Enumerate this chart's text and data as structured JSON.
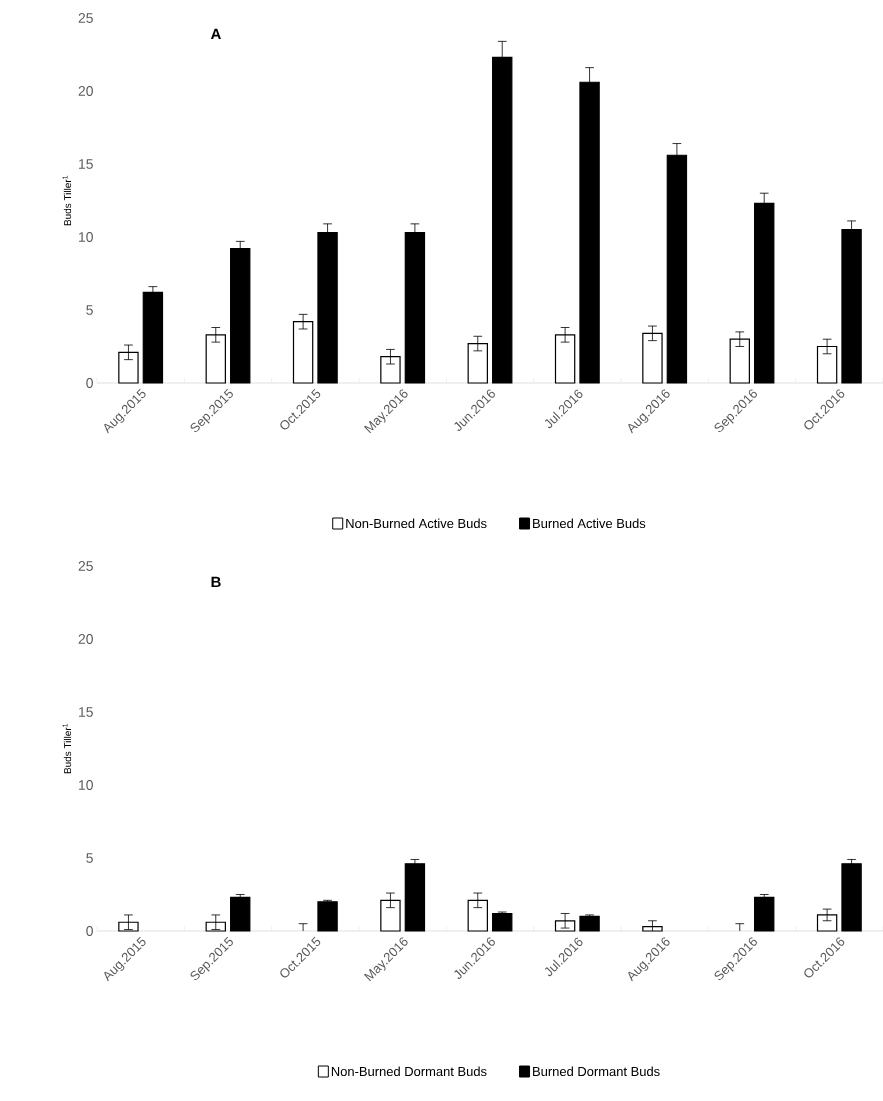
{
  "chart_data": [
    {
      "type": "bar",
      "title": "A",
      "ylabel": "Buds Tiller$^{1}$",
      "categories": [
        "Aug.2015",
        "Sep.2015",
        "Oct.2015",
        "May.2016",
        "Jun.2016",
        "Jul.2016",
        "Aug.2016",
        "Sep.2016",
        "Oct.2016"
      ],
      "ylim": [
        0,
        25
      ],
      "yticks": [
        0,
        5,
        10,
        15,
        20,
        25
      ],
      "legend": "bottom",
      "series": [
        {
          "name": "Non-Burned Active Buds",
          "color": "#ffffff",
          "values": [
            2.1,
            3.3,
            4.2,
            1.8,
            2.7,
            3.3,
            3.4,
            3.0,
            2.5
          ],
          "errors": [
            0.5,
            0.5,
            0.5,
            0.5,
            0.5,
            0.5,
            0.5,
            0.5,
            0.5
          ]
        },
        {
          "name": "Burned Active Buds",
          "color": "#000000",
          "values": [
            6.2,
            9.2,
            10.3,
            10.3,
            22.3,
            20.6,
            15.6,
            12.3,
            10.5
          ],
          "errors": [
            0.4,
            0.5,
            0.6,
            0.6,
            1.1,
            1.0,
            0.8,
            0.7,
            0.6
          ]
        }
      ]
    },
    {
      "type": "bar",
      "title": "B",
      "ylabel": "Buds Tiller$^{1}$",
      "categories": [
        "Aug.2015",
        "Sep.2015",
        "Oct.2015",
        "May.2016",
        "Jun.2016",
        "Jul.2016",
        "Aug.2016",
        "Sep.2016",
        "Oct.2016"
      ],
      "ylim": [
        0,
        25
      ],
      "yticks": [
        0,
        5,
        10,
        15,
        20,
        25
      ],
      "legend": "bottom",
      "series": [
        {
          "name": "Non-Burned Dormant Buds",
          "color": "#ffffff",
          "values": [
            0.6,
            0.6,
            0,
            2.1,
            2.1,
            0.7,
            0.3,
            0,
            1.1
          ],
          "errors": [
            0.5,
            0.5,
            0.5,
            0.5,
            0.5,
            0.5,
            0.4,
            0.5,
            0.4
          ]
        },
        {
          "name": "Burned Dormant Buds",
          "color": "#000000",
          "values": [
            null,
            2.3,
            2.0,
            4.6,
            1.2,
            1.0,
            null,
            2.3,
            4.6
          ],
          "errors": [
            null,
            0.2,
            0.1,
            0.3,
            0.1,
            0.1,
            null,
            0.2,
            0.3
          ]
        }
      ]
    }
  ]
}
